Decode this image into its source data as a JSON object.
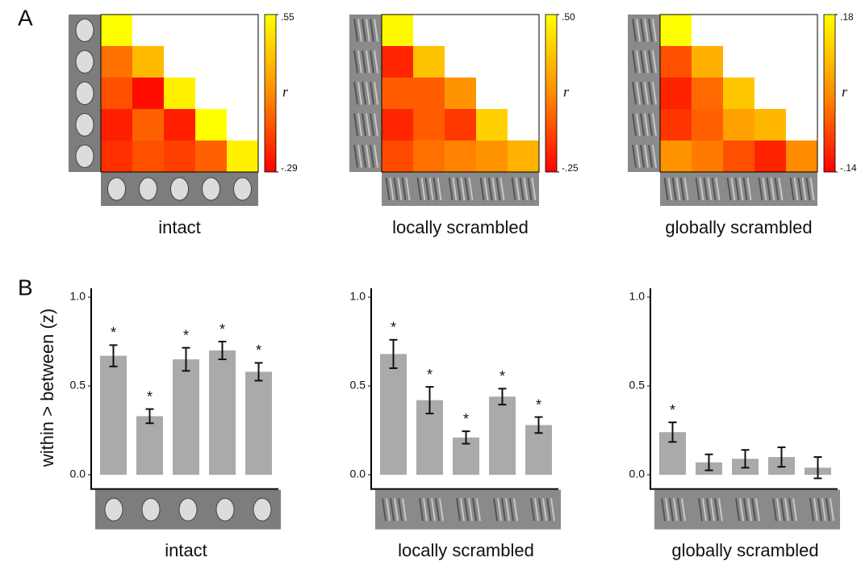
{
  "panel_labels": [
    "A",
    "B"
  ],
  "chart_data": [
    {
      "type": "heatmap",
      "xlabel": "intact",
      "colorbar_label": "r",
      "clim": [
        -0.29,
        0.55
      ],
      "colorbar_ticks": [
        {
          "value": 0.55,
          "label": ".55"
        },
        {
          "value": -0.29,
          "label": "-.29"
        }
      ],
      "colormap": [
        "#ff0000",
        "#ff8c00",
        "#ffff00"
      ],
      "matrix": [
        [
          0.55,
          null,
          null,
          null,
          null
        ],
        [
          0.05,
          0.3,
          null,
          null,
          null
        ],
        [
          -0.05,
          -0.25,
          0.5,
          null,
          null
        ],
        [
          -0.2,
          0.0,
          -0.2,
          0.55,
          null
        ],
        [
          -0.15,
          -0.05,
          -0.1,
          0.0,
          0.5
        ]
      ]
    },
    {
      "type": "heatmap",
      "xlabel": "locally scrambled",
      "colorbar_label": "r",
      "clim": [
        -0.25,
        0.5
      ],
      "colorbar_ticks": [
        {
          "value": 0.5,
          "label": ".50"
        },
        {
          "value": -0.25,
          "label": "-.25"
        }
      ],
      "colormap": [
        "#ff0000",
        "#ff8c00",
        "#ffff00"
      ],
      "matrix": [
        [
          0.48,
          null,
          null,
          null,
          null
        ],
        [
          -0.15,
          0.3,
          null,
          null,
          null
        ],
        [
          0.0,
          0.0,
          0.15,
          null,
          null
        ],
        [
          -0.15,
          0.0,
          -0.1,
          0.35,
          null
        ],
        [
          -0.05,
          0.05,
          0.1,
          0.15,
          0.25
        ]
      ]
    },
    {
      "type": "heatmap",
      "xlabel": "globally scrambled",
      "colorbar_label": "r",
      "clim": [
        -0.14,
        0.18
      ],
      "colorbar_ticks": [
        {
          "value": 0.18,
          "label": ".18"
        },
        {
          "value": -0.14,
          "label": "-.14"
        }
      ],
      "colormap": [
        "#ff0000",
        "#ff8c00",
        "#ffff00"
      ],
      "matrix": [
        [
          0.18,
          null,
          null,
          null,
          null
        ],
        [
          -0.05,
          0.07,
          null,
          null,
          null
        ],
        [
          -0.1,
          -0.02,
          0.1,
          null,
          null
        ],
        [
          -0.08,
          -0.03,
          0.05,
          0.08,
          null
        ],
        [
          0.03,
          0.0,
          -0.05,
          -0.1,
          0.02
        ]
      ]
    },
    {
      "type": "bar",
      "xlabel": "intact",
      "ylabel": "within > between (z)",
      "ylim": [
        -0.08,
        1.05
      ],
      "yticks": [
        {
          "value": 0,
          "label": "0.0"
        },
        {
          "value": 0.5,
          "label": "0.5"
        },
        {
          "value": 1,
          "label": "1.0"
        }
      ],
      "color": "#aaaaaa",
      "values": [
        0.67,
        0.33,
        0.65,
        0.7,
        0.58
      ],
      "errors": [
        0.06,
        0.04,
        0.065,
        0.05,
        0.05
      ],
      "significance": [
        "*",
        "*",
        "*",
        "*",
        "*"
      ]
    },
    {
      "type": "bar",
      "xlabel": "locally scrambled",
      "ylim": [
        -0.08,
        1.05
      ],
      "yticks": [
        {
          "value": 0,
          "label": "0.0"
        },
        {
          "value": 0.5,
          "label": "0.5"
        },
        {
          "value": 1,
          "label": "1.0"
        }
      ],
      "color": "#aaaaaa",
      "values": [
        0.68,
        0.42,
        0.21,
        0.44,
        0.28
      ],
      "errors": [
        0.08,
        0.075,
        0.035,
        0.045,
        0.045
      ],
      "significance": [
        "*",
        "*",
        "*",
        "*",
        "*"
      ]
    },
    {
      "type": "bar",
      "xlabel": "globally scrambled",
      "ylim": [
        -0.08,
        1.05
      ],
      "yticks": [
        {
          "value": 0,
          "label": "0.0"
        },
        {
          "value": 0.5,
          "label": "0.5"
        },
        {
          "value": 1,
          "label": "1.0"
        }
      ],
      "color": "#aaaaaa",
      "values": [
        0.24,
        0.07,
        0.09,
        0.1,
        0.04
      ],
      "errors": [
        0.055,
        0.045,
        0.05,
        0.055,
        0.06
      ],
      "significance": [
        "*",
        null,
        null,
        null,
        null
      ]
    }
  ]
}
